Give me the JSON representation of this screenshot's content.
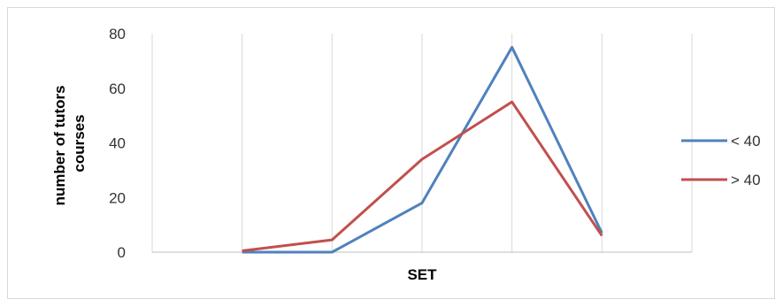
{
  "chart_data": {
    "type": "line",
    "title": "",
    "xlabel": "SET",
    "ylabel_lines": [
      "number of tutors",
      "courses"
    ],
    "categories": [
      "",
      "",
      "",
      "",
      "",
      "",
      ""
    ],
    "ylim": [
      0,
      80
    ],
    "yticks": [
      0,
      20,
      40,
      60,
      80
    ],
    "grid": "vertical",
    "legend": "right",
    "series": [
      {
        "name": "< 40",
        "color": "#4f81bd",
        "values": [
          null,
          0,
          0,
          18,
          75,
          7,
          null
        ]
      },
      {
        "name": "> 40",
        "color": "#c0504d",
        "values": [
          null,
          0.5,
          4.5,
          34,
          55,
          6,
          null
        ]
      }
    ]
  }
}
